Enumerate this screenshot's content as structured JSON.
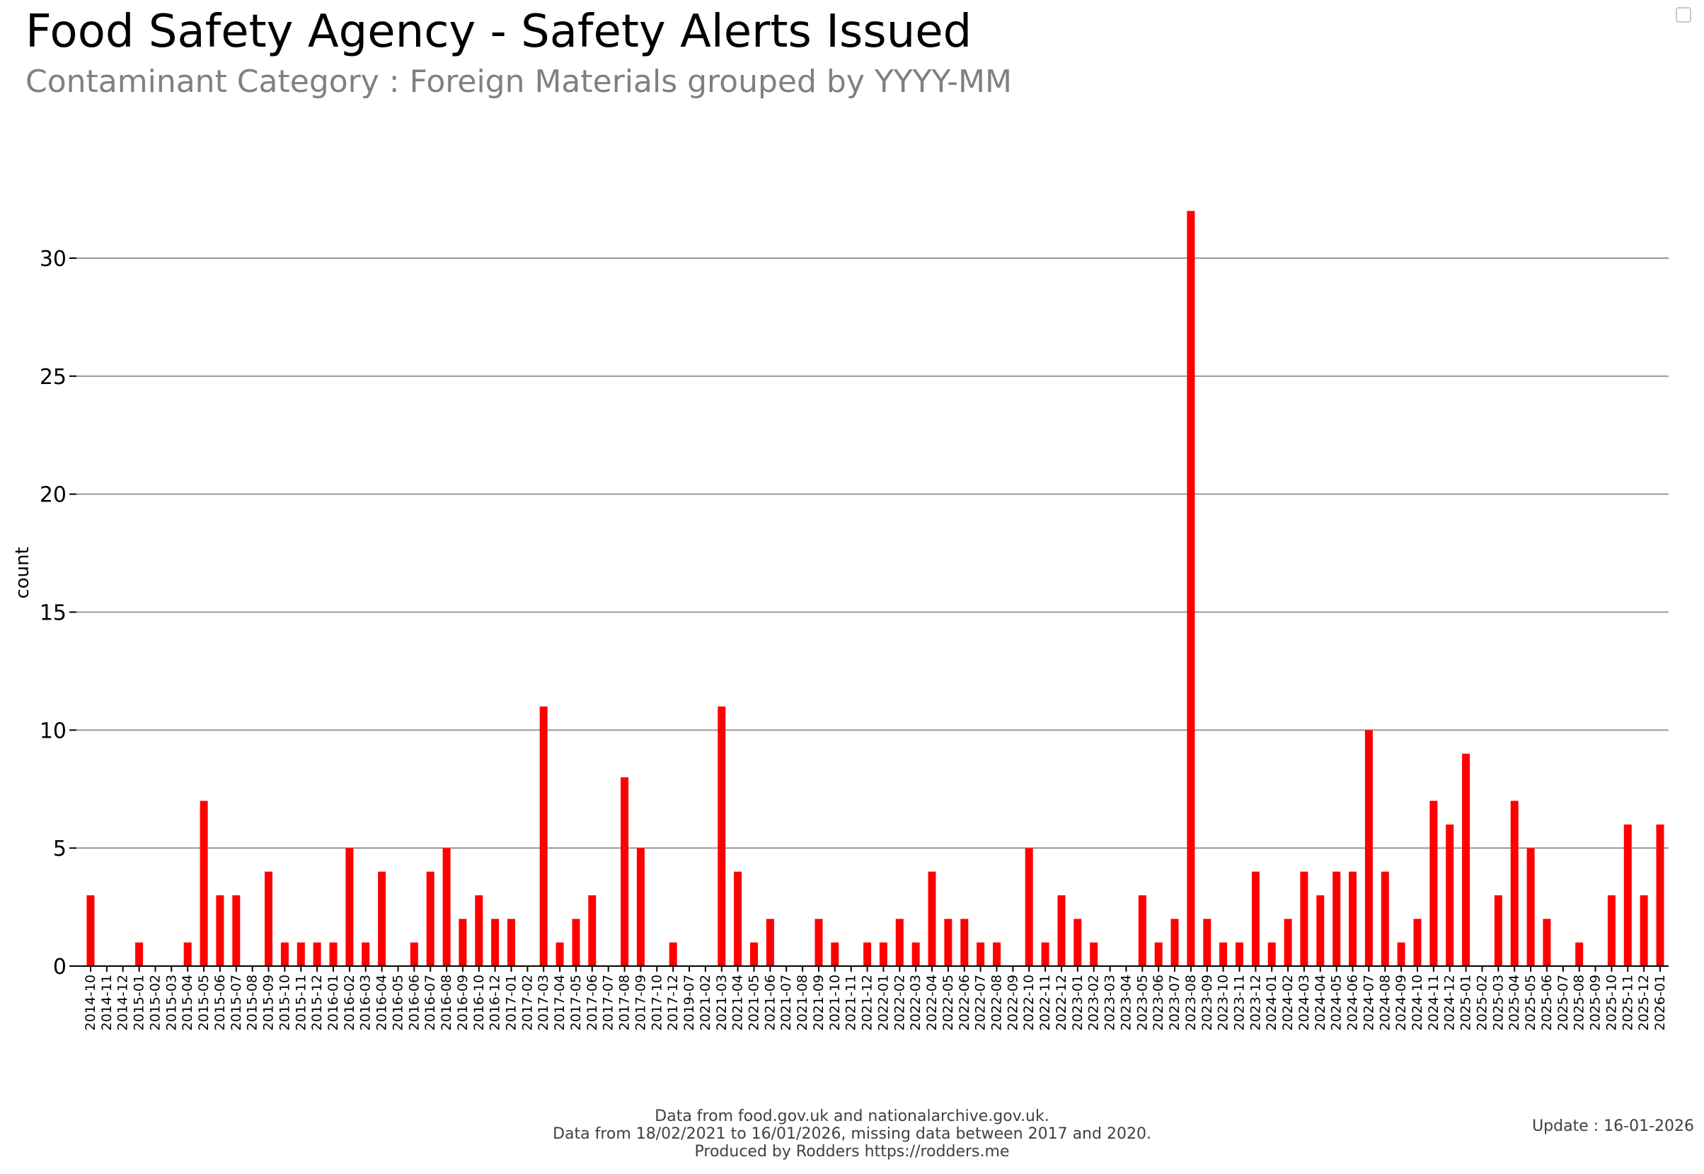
{
  "header": {
    "title": "Food Safety Agency - Safety Alerts Issued",
    "subtitle": "Contaminant Category : Foreign Materials grouped by YYYY-MM"
  },
  "footer": {
    "line1": "Data from food.gov.uk and nationalarchive.gov.uk.",
    "line2": "Data from 18/02/2021 to 16/01/2026, missing data between 2017 and 2020.",
    "line3": "Produced by Rodders https://rodders.me",
    "update": "Update : 16-01-2026"
  },
  "colors": {
    "bar": "#ff0000",
    "grid": "#999999",
    "axis": "#000000"
  },
  "chart_data": {
    "type": "bar",
    "title": "Food Safety Agency - Safety Alerts Issued",
    "xlabel": "",
    "ylabel": "count",
    "ylim": [
      0,
      33
    ],
    "yticks": [
      0,
      5,
      10,
      15,
      20,
      25,
      30
    ],
    "grid": true,
    "categories": [
      "2014-10",
      "2014-11",
      "2014-12",
      "2015-01",
      "2015-02",
      "2015-03",
      "2015-04",
      "2015-05",
      "2015-06",
      "2015-07",
      "2015-08",
      "2015-09",
      "2015-10",
      "2015-11",
      "2015-12",
      "2016-01",
      "2016-02",
      "2016-03",
      "2016-04",
      "2016-05",
      "2016-06",
      "2016-07",
      "2016-08",
      "2016-09",
      "2016-10",
      "2016-12",
      "2017-01",
      "2017-02",
      "2017-03",
      "2017-04",
      "2017-05",
      "2017-06",
      "2017-07",
      "2017-08",
      "2017-09",
      "2017-10",
      "2017-12",
      "2019-07",
      "2021-02",
      "2021-03",
      "2021-04",
      "2021-05",
      "2021-06",
      "2021-07",
      "2021-08",
      "2021-09",
      "2021-10",
      "2021-11",
      "2021-12",
      "2022-01",
      "2022-02",
      "2022-03",
      "2022-04",
      "2022-05",
      "2022-06",
      "2022-07",
      "2022-08",
      "2022-09",
      "2022-10",
      "2022-11",
      "2022-12",
      "2023-01",
      "2023-02",
      "2023-03",
      "2023-04",
      "2023-05",
      "2023-06",
      "2023-07",
      "2023-08",
      "2023-09",
      "2023-10",
      "2023-11",
      "2023-12",
      "2024-01",
      "2024-02",
      "2024-03",
      "2024-04",
      "2024-05",
      "2024-06",
      "2024-07",
      "2024-08",
      "2024-09",
      "2024-10",
      "2024-11",
      "2024-12",
      "2025-01",
      "2025-02",
      "2025-03",
      "2025-04",
      "2025-05",
      "2025-06",
      "2025-07",
      "2025-08",
      "2025-09",
      "2025-10",
      "2025-11",
      "2025-12",
      "2026-01"
    ],
    "values": [
      3,
      0,
      0,
      1,
      0,
      0,
      1,
      7,
      3,
      3,
      0,
      4,
      1,
      1,
      1,
      1,
      5,
      1,
      4,
      0,
      1,
      4,
      5,
      2,
      3,
      2,
      2,
      0,
      11,
      1,
      2,
      3,
      0,
      8,
      5,
      0,
      1,
      0,
      0,
      11,
      4,
      1,
      2,
      0,
      0,
      2,
      1,
      0,
      1,
      1,
      2,
      1,
      4,
      2,
      2,
      1,
      1,
      0,
      5,
      1,
      3,
      2,
      1,
      0,
      0,
      3,
      1,
      2,
      32,
      2,
      1,
      1,
      4,
      1,
      2,
      4,
      3,
      4,
      4,
      10,
      4,
      1,
      2,
      7,
      6,
      9,
      0,
      3,
      7,
      5,
      2,
      0,
      1,
      0,
      3,
      6,
      3,
      6
    ]
  }
}
